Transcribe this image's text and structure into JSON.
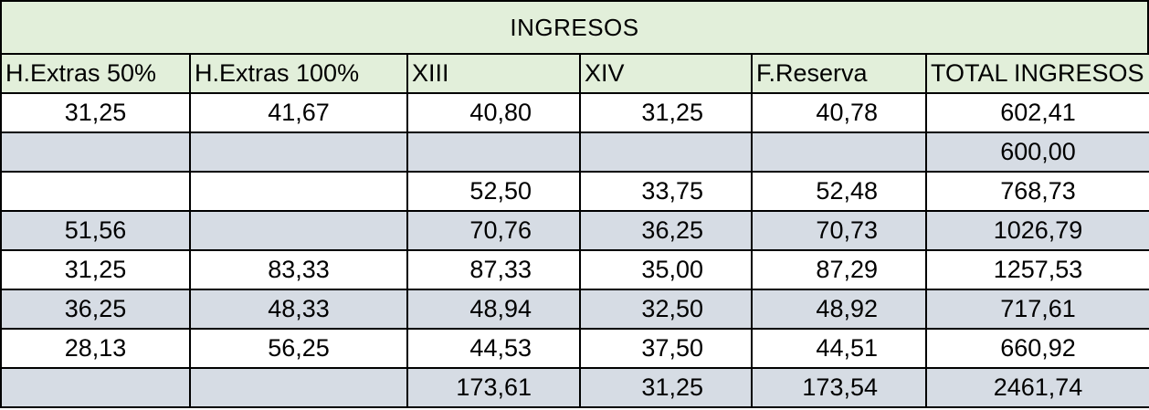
{
  "title": "INGRESOS",
  "columns": [
    "H.Extras 50%",
    "H.Extras 100%",
    "XIII",
    "XIV",
    "F.Reserva",
    "TOTAL INGRESOS"
  ],
  "rows": [
    [
      "31,25",
      "41,67",
      "40,80",
      "31,25",
      "40,78",
      "602,41"
    ],
    [
      "",
      "",
      "",
      "",
      "",
      "600,00"
    ],
    [
      "",
      "",
      "52,50",
      "33,75",
      "52,48",
      "768,73"
    ],
    [
      "51,56",
      "",
      "70,76",
      "36,25",
      "70,73",
      "1026,79"
    ],
    [
      "31,25",
      "83,33",
      "87,33",
      "35,00",
      "87,29",
      "1257,53"
    ],
    [
      "36,25",
      "48,33",
      "48,94",
      "32,50",
      "48,92",
      "717,61"
    ],
    [
      "28,13",
      "56,25",
      "44,53",
      "37,50",
      "44,51",
      "660,92"
    ],
    [
      "",
      "",
      "173,61",
      "31,25",
      "173,54",
      "2461,74"
    ]
  ],
  "colors": {
    "header_fill": "#e2efda",
    "band_fill": "#d6dce4",
    "border": "#000000"
  }
}
